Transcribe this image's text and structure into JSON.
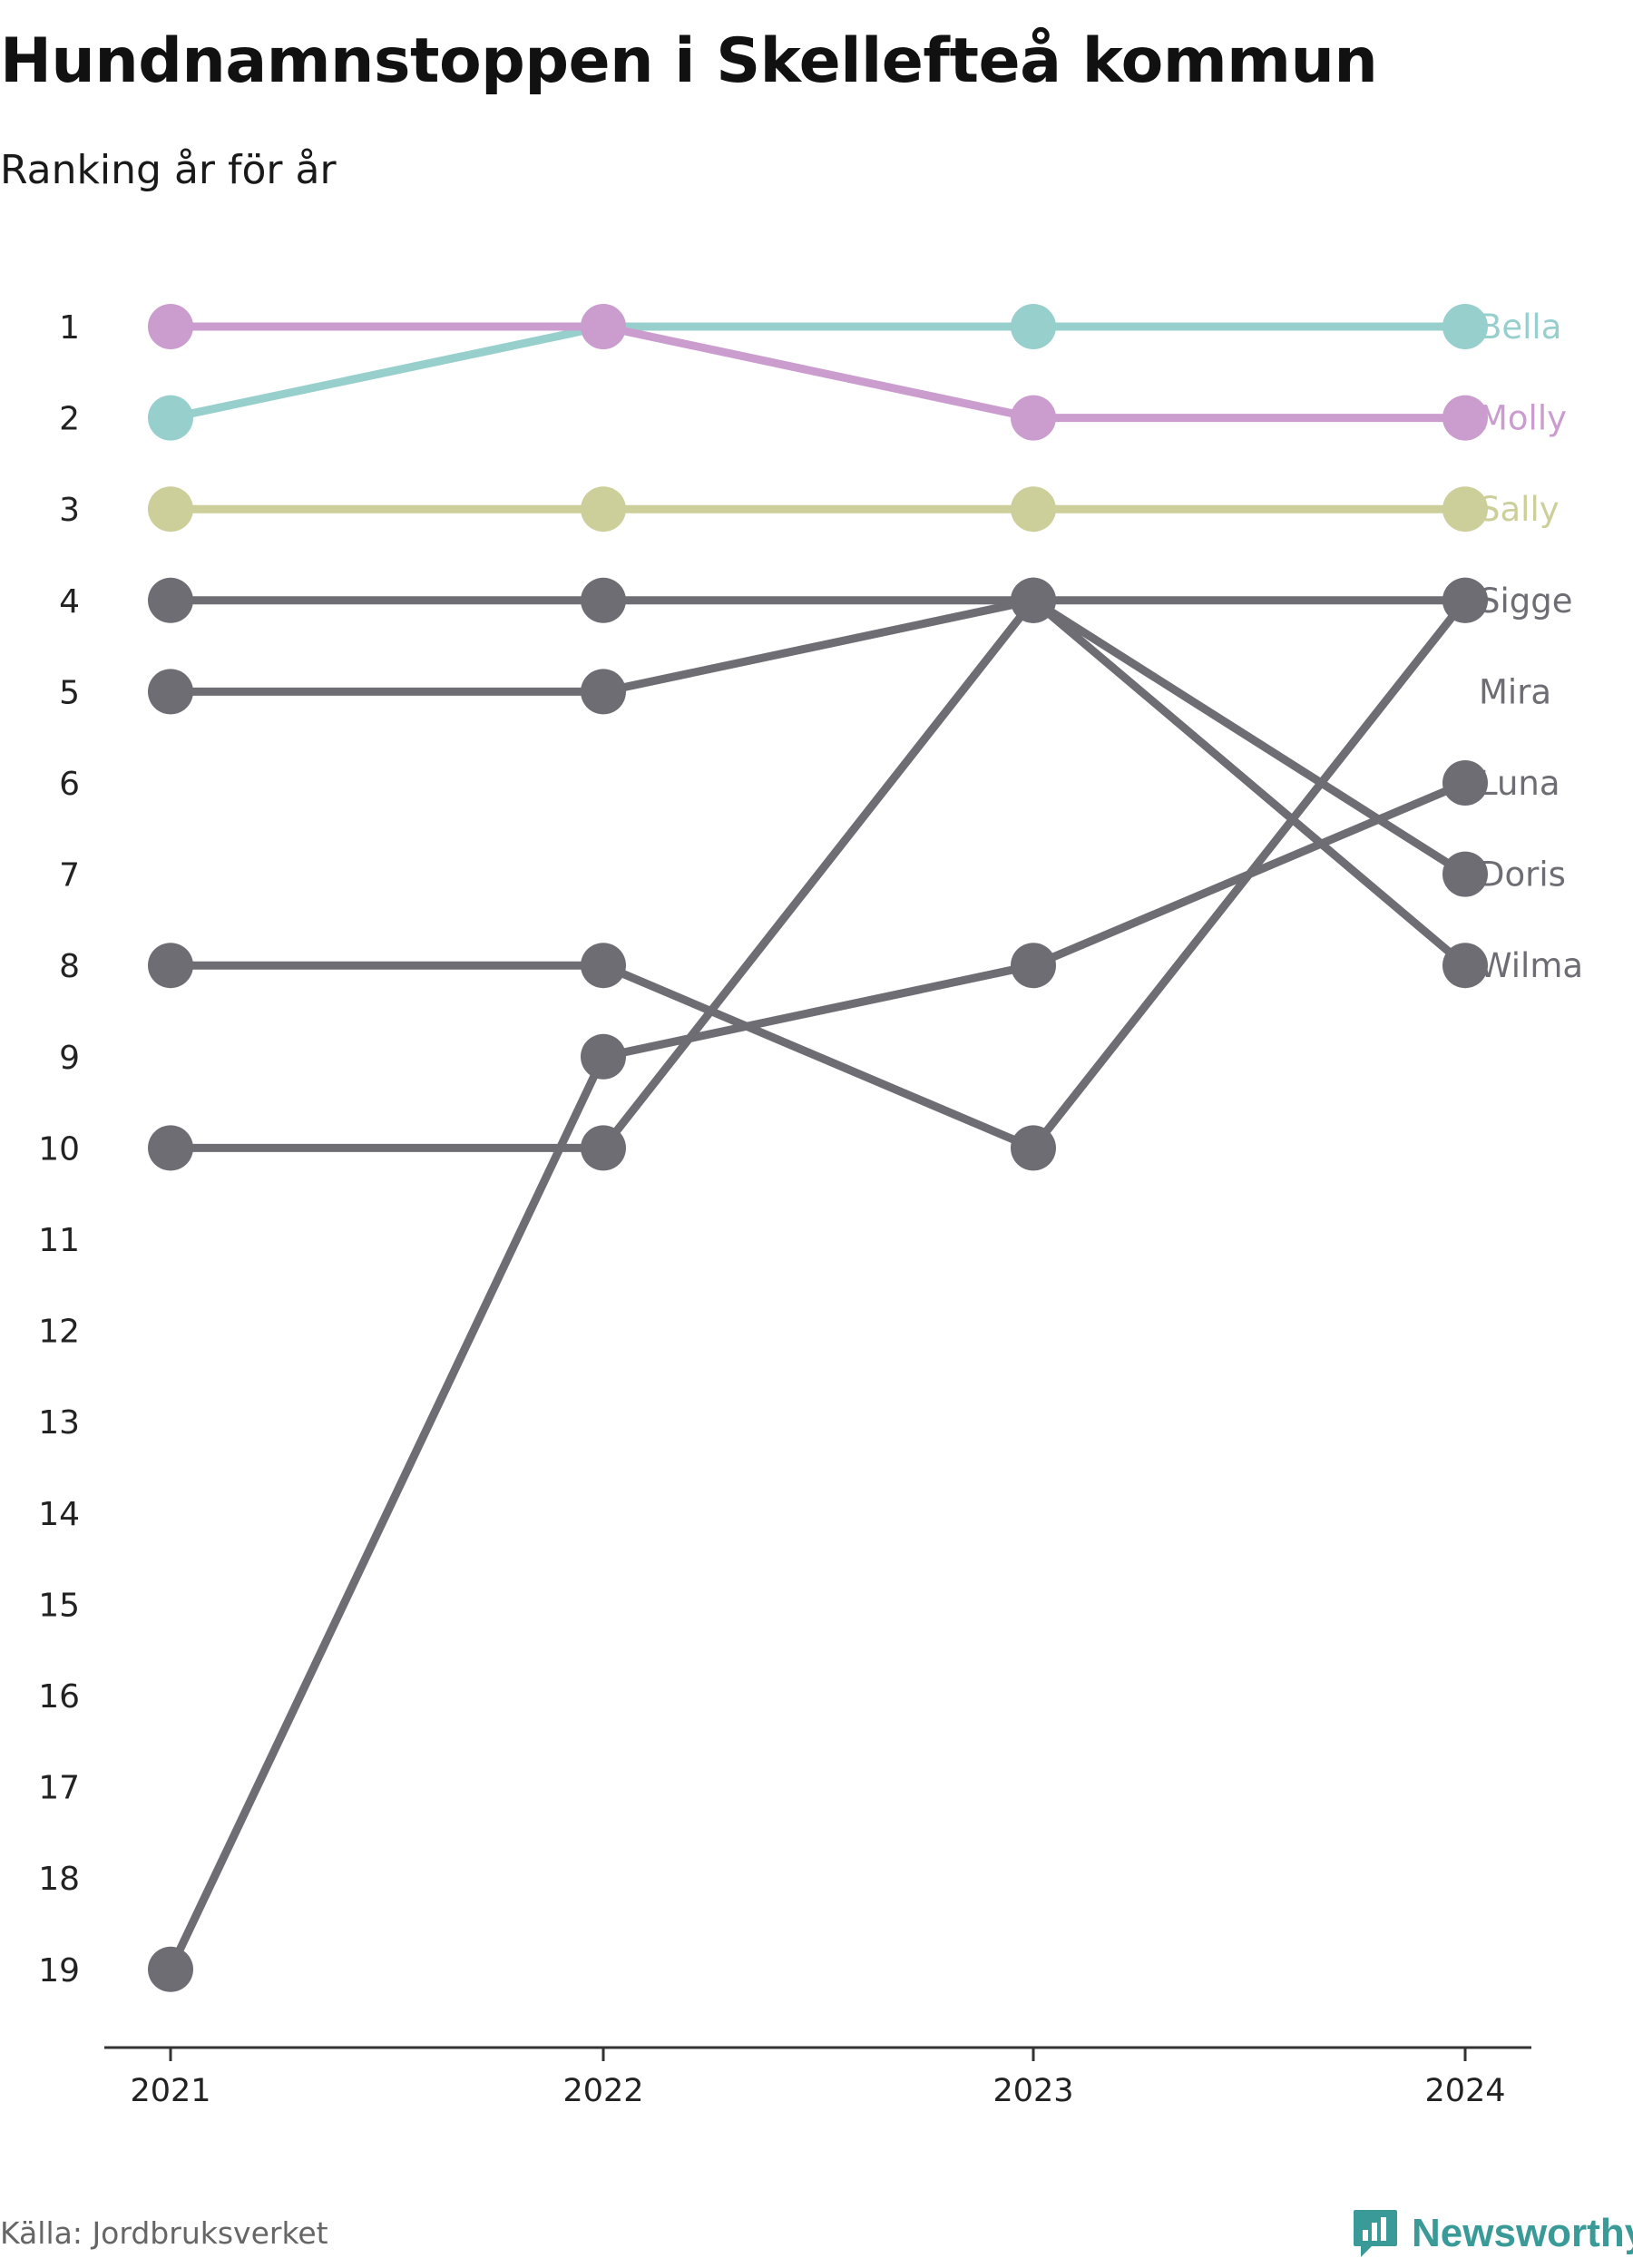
{
  "header": {
    "title": "Hundnamnstoppen i Skellefteå kommun",
    "subtitle": "Ranking år för år"
  },
  "footer": {
    "source": "Källa: Jordbruksverket",
    "brand": "Newsworthy",
    "brand_icon": "bar-chart-speech-icon"
  },
  "colors": {
    "Bella": "#97cfcd",
    "Molly": "#cb9dcf",
    "Sally": "#cdcf9b",
    "other": "#6e6d73",
    "axis": "#333333",
    "brand": "#3a9a98"
  },
  "chart_data": {
    "type": "line",
    "x": [
      "2021",
      "2022",
      "2023",
      "2024"
    ],
    "y_reversed": true,
    "ylim": [
      1,
      19
    ],
    "y_ticks": [
      1,
      2,
      3,
      4,
      5,
      6,
      7,
      8,
      9,
      10,
      11,
      12,
      13,
      14,
      15,
      16,
      17,
      18,
      19
    ],
    "grid": false,
    "series": [
      {
        "name": "Bella",
        "values": [
          2,
          1,
          1,
          1
        ],
        "color_key": "Bella"
      },
      {
        "name": "Molly",
        "values": [
          1,
          1,
          2,
          2
        ],
        "color_key": "Molly"
      },
      {
        "name": "Sally",
        "values": [
          3,
          3,
          3,
          3
        ],
        "color_key": "Sally"
      },
      {
        "name": "Sigge",
        "values": [
          10,
          10,
          4,
          4
        ],
        "color_key": "other"
      },
      {
        "name": "Mira",
        "values": [
          8,
          8,
          10,
          4
        ],
        "color_key": "other"
      },
      {
        "name": "Luna",
        "values": [
          19,
          9,
          8,
          6
        ],
        "color_key": "other"
      },
      {
        "name": "Doris",
        "values": [
          4,
          4,
          4,
          7
        ],
        "color_key": "other"
      },
      {
        "name": "Wilma",
        "values": [
          5,
          5,
          4,
          8
        ],
        "color_key": "other"
      }
    ],
    "end_labels": [
      {
        "name": "Bella",
        "rank": 1,
        "color_key": "Bella"
      },
      {
        "name": "Molly",
        "rank": 2,
        "color_key": "Molly"
      },
      {
        "name": "Sally",
        "rank": 3,
        "color_key": "Sally"
      },
      {
        "name": "Sigge",
        "rank": 4,
        "color_key": "other"
      },
      {
        "name": "Mira",
        "rank": 5,
        "color_key": "other"
      },
      {
        "name": "Luna",
        "rank": 6,
        "color_key": "other"
      },
      {
        "name": "Doris",
        "rank": 7,
        "color_key": "other"
      },
      {
        "name": "Wilma",
        "rank": 8,
        "color_key": "other"
      }
    ]
  }
}
